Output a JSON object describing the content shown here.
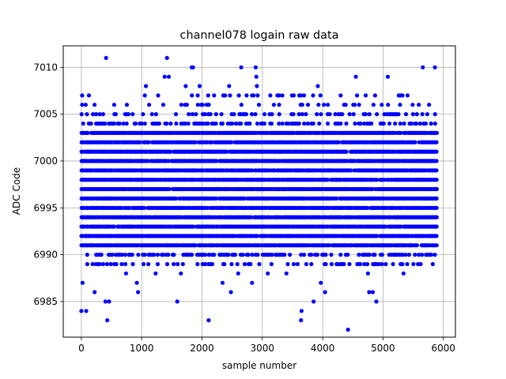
{
  "chart_data": {
    "type": "scatter",
    "title": "channel078 logain raw data",
    "xlabel": "sample number",
    "ylabel": "ADC Code",
    "xlim": [
      -300,
      6200
    ],
    "ylim": [
      6981.2,
      7012.3
    ],
    "xticks": [
      0,
      1000,
      2000,
      3000,
      4000,
      5000,
      6000
    ],
    "yticks": [
      6985,
      6990,
      6995,
      7000,
      7005,
      7010
    ],
    "grid": true,
    "marker_color": "#0000ff",
    "series": [
      {
        "name": "",
        "x_start": 0,
        "x_end": 5900,
        "band_levels": [
          6991,
          6992,
          6993,
          6994,
          6995,
          6996,
          6997,
          6998,
          6999,
          7000,
          7001,
          7002,
          7003
        ],
        "sparse_levels": [
          6989,
          6990,
          7004,
          7005,
          7006,
          7007
        ],
        "outliers": [
          {
            "x": 0,
            "y": 6984
          },
          {
            "x": 80,
            "y": 6984
          },
          {
            "x": 20,
            "y": 6987
          },
          {
            "x": 410,
            "y": 7011
          },
          {
            "x": 430,
            "y": 6983
          },
          {
            "x": 400,
            "y": 6985
          },
          {
            "x": 460,
            "y": 6985
          },
          {
            "x": 220,
            "y": 6986
          },
          {
            "x": 1420,
            "y": 7011
          },
          {
            "x": 1590,
            "y": 6985
          },
          {
            "x": 2110,
            "y": 6983
          },
          {
            "x": 4420,
            "y": 6982
          },
          {
            "x": 3640,
            "y": 6983
          },
          {
            "x": 3650,
            "y": 6984
          },
          {
            "x": 2480,
            "y": 6986
          },
          {
            "x": 2650,
            "y": 7010
          },
          {
            "x": 2890,
            "y": 7010
          },
          {
            "x": 2900,
            "y": 7009
          },
          {
            "x": 2910,
            "y": 7008
          },
          {
            "x": 1850,
            "y": 7010
          },
          {
            "x": 1830,
            "y": 7010
          },
          {
            "x": 5660,
            "y": 7010
          },
          {
            "x": 5860,
            "y": 7010
          },
          {
            "x": 3920,
            "y": 7008
          },
          {
            "x": 4550,
            "y": 7009
          },
          {
            "x": 5080,
            "y": 7009
          },
          {
            "x": 1730,
            "y": 7008
          },
          {
            "x": 1070,
            "y": 7008
          },
          {
            "x": 4890,
            "y": 6985
          },
          {
            "x": 3850,
            "y": 6985
          },
          {
            "x": 920,
            "y": 6987
          },
          {
            "x": 940,
            "y": 6986
          },
          {
            "x": 2340,
            "y": 6987
          },
          {
            "x": 2830,
            "y": 6987
          },
          {
            "x": 740,
            "y": 6988
          },
          {
            "x": 1230,
            "y": 6988
          },
          {
            "x": 1650,
            "y": 6988
          },
          {
            "x": 2600,
            "y": 6988
          },
          {
            "x": 3090,
            "y": 6988
          },
          {
            "x": 3400,
            "y": 6988
          },
          {
            "x": 3970,
            "y": 6987
          },
          {
            "x": 4040,
            "y": 6986
          },
          {
            "x": 4770,
            "y": 6986
          },
          {
            "x": 4830,
            "y": 6986
          },
          {
            "x": 5340,
            "y": 6988
          },
          {
            "x": 4750,
            "y": 6988
          },
          {
            "x": 1960,
            "y": 7008
          },
          {
            "x": 2450,
            "y": 7008
          },
          {
            "x": 1380,
            "y": 7009
          },
          {
            "x": 1450,
            "y": 7009
          }
        ]
      }
    ]
  }
}
